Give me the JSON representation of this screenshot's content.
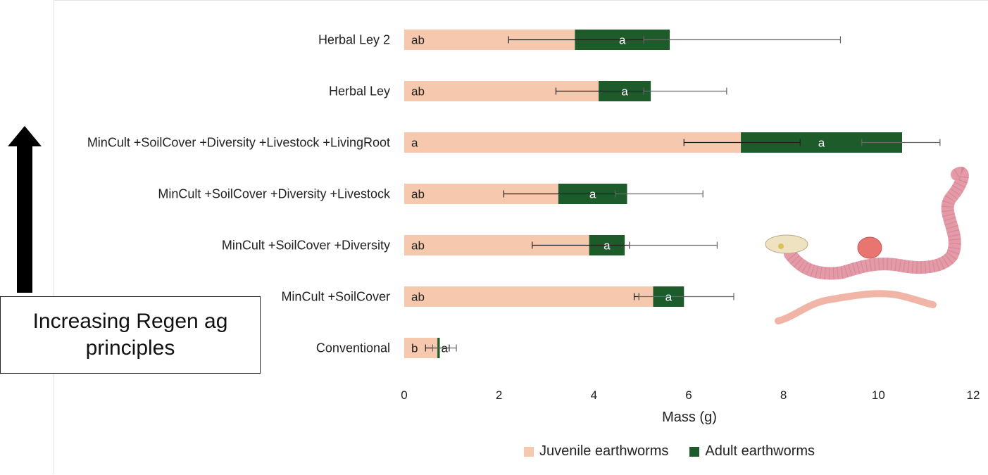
{
  "chart_data": {
    "type": "bar",
    "orientation": "horizontal",
    "stacked": true,
    "categories": [
      "Herbal Ley 2",
      "Herbal Ley",
      "MinCult +SoilCover +Diversity +Livestock +LivingRoot",
      "MinCult +SoilCover +Diversity +Livestock",
      "MinCult +SoilCover +Diversity",
      "MinCult +SoilCover",
      "Conventional"
    ],
    "series": [
      {
        "name": "Juvenile earthworms",
        "color": "#f6c8ad",
        "values": [
          3.6,
          4.1,
          7.1,
          3.25,
          3.9,
          5.25,
          0.7
        ],
        "error_low": [
          2.2,
          3.2,
          5.9,
          2.1,
          2.7,
          4.85,
          0.45
        ],
        "error_high": [
          5.05,
          5.05,
          8.35,
          4.45,
          4.75,
          4.95,
          0.95
        ],
        "letters": [
          "ab",
          "ab",
          "a",
          "ab",
          "ab",
          "ab",
          "b"
        ]
      },
      {
        "name": "Adult earthworms",
        "color": "#1e5b2a",
        "values": [
          2.0,
          1.1,
          3.4,
          1.45,
          0.75,
          0.65,
          0.05
        ],
        "error_low": [
          5.05,
          5.05,
          9.65,
          4.45,
          4.75,
          4.95,
          0.6
        ],
        "error_high": [
          9.2,
          6.8,
          11.3,
          6.3,
          6.6,
          6.95,
          1.1
        ],
        "letters": [
          "a",
          "a",
          "a",
          "a",
          "a",
          "a",
          "a"
        ]
      }
    ],
    "xlabel": "Mass (g)",
    "xlim": [
      0,
      12
    ],
    "xticks": [
      "0",
      "2",
      "4",
      "6",
      "8",
      "10",
      "12"
    ],
    "grid": false,
    "legend_position": "bottom"
  },
  "annotation": {
    "text": "Increasing Regen ag principles",
    "arrow_direction": "up",
    "arrow_color": "#000000"
  },
  "illustration": {
    "icon": "earthworm-icon",
    "body_color": "#e59aa8",
    "clitellum_color": "#e97570",
    "juvenile_color": "#f0b5a6"
  }
}
